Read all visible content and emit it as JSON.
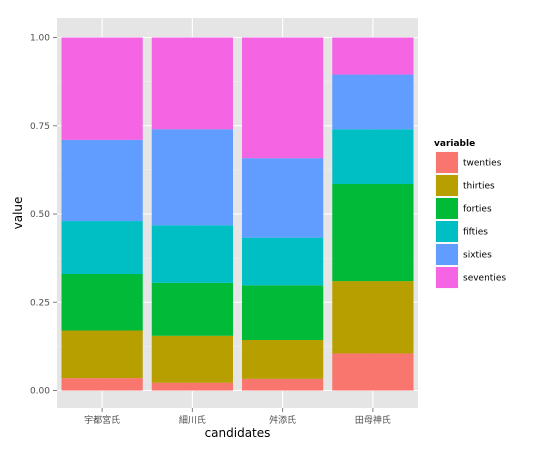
{
  "chart_data": {
    "type": "bar",
    "stacked": true,
    "categories": [
      "宇都宮氏",
      "細川氏",
      "舛添氏",
      "田母神氏"
    ],
    "series": [
      {
        "name": "twenties",
        "color": "#F8766D",
        "values": [
          0.035,
          0.022,
          0.033,
          0.105
        ]
      },
      {
        "name": "thirties",
        "color": "#B79F00",
        "values": [
          0.135,
          0.133,
          0.11,
          0.205
        ]
      },
      {
        "name": "forties",
        "color": "#00BA38",
        "values": [
          0.16,
          0.15,
          0.155,
          0.275
        ]
      },
      {
        "name": "fifties",
        "color": "#00BFC4",
        "values": [
          0.15,
          0.163,
          0.135,
          0.155
        ]
      },
      {
        "name": "sixties",
        "color": "#619CFF",
        "values": [
          0.23,
          0.272,
          0.225,
          0.155
        ]
      },
      {
        "name": "seventies",
        "color": "#F564E3",
        "values": [
          0.29,
          0.26,
          0.342,
          0.105
        ]
      }
    ],
    "xlabel": "candidates",
    "ylabel": "value",
    "ylim": [
      0,
      1.0
    ],
    "yticks": [
      "0.00",
      "0.25",
      "0.50",
      "0.75",
      "1.00"
    ],
    "ytick_values": [
      0,
      0.25,
      0.5,
      0.75,
      1.0
    ],
    "legend_title": "variable",
    "legend_position": "right",
    "panel_background": "#E5E5E5",
    "grid": true
  }
}
